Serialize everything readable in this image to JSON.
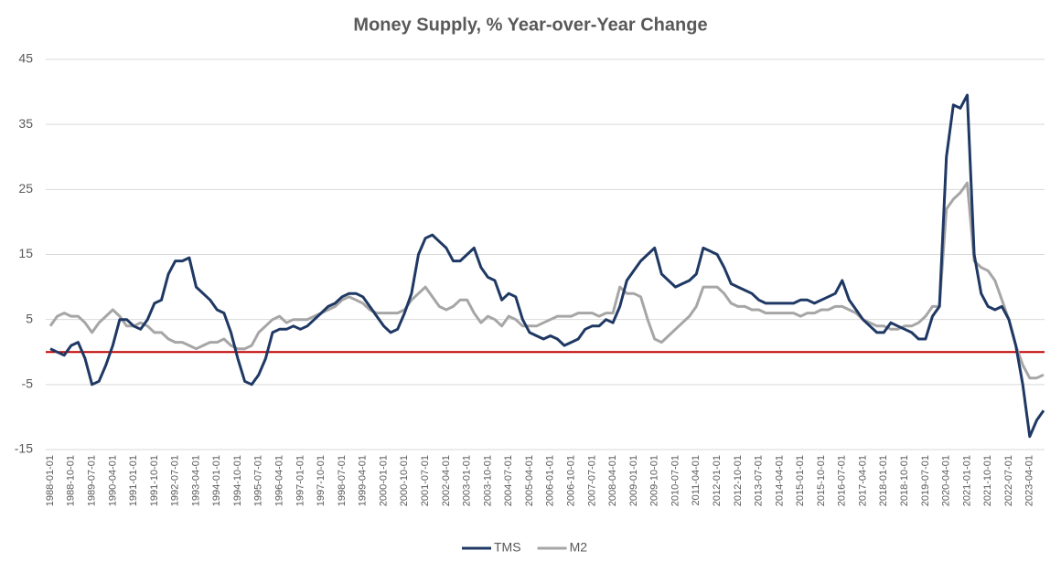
{
  "chart_data": {
    "type": "line",
    "title": "Money Supply, % Year-over-Year Change",
    "categories": [
      "1988-01-01",
      null,
      null,
      "1988-10-01",
      null,
      null,
      "1989-07-01",
      null,
      null,
      "1990-04-01",
      null,
      null,
      "1991-01-01",
      null,
      null,
      "1991-10-01",
      null,
      null,
      "1992-07-01",
      null,
      null,
      "1993-04-01",
      null,
      null,
      "1994-01-01",
      null,
      null,
      "1994-10-01",
      null,
      null,
      "1995-07-01",
      null,
      null,
      "1996-04-01",
      null,
      null,
      "1997-01-01",
      null,
      null,
      "1997-10-01",
      null,
      null,
      "1998-07-01",
      null,
      null,
      "1999-04-01",
      null,
      null,
      "2000-01-01",
      null,
      null,
      "2000-10-01",
      null,
      null,
      "2001-07-01",
      null,
      null,
      "2002-04-01",
      null,
      null,
      "2003-01-01",
      null,
      null,
      "2003-10-01",
      null,
      null,
      "2004-07-01",
      null,
      null,
      "2005-04-01",
      null,
      null,
      "2006-01-01",
      null,
      null,
      "2006-10-01",
      null,
      null,
      "2007-07-01",
      null,
      null,
      "2008-04-01",
      null,
      null,
      "2009-01-01",
      null,
      null,
      "2009-10-01",
      null,
      null,
      "2010-07-01",
      null,
      null,
      "2011-04-01",
      null,
      null,
      "2012-01-01",
      null,
      null,
      "2012-10-01",
      null,
      null,
      "2013-07-01",
      null,
      null,
      "2014-04-01",
      null,
      null,
      "2015-01-01",
      null,
      null,
      "2015-10-01",
      null,
      null,
      "2016-07-01",
      null,
      null,
      "2017-04-01",
      null,
      null,
      "2018-01-01",
      null,
      null,
      "2018-10-01",
      null,
      null,
      "2019-07-01",
      null,
      null,
      "2020-04-01",
      null,
      null,
      "2021-01-01",
      null,
      null,
      "2021-10-01",
      null,
      null,
      "2022-07-01",
      null,
      null,
      "2023-04-01",
      null,
      null
    ],
    "series": [
      {
        "name": "TMS",
        "color": "#1f3864",
        "values": [
          0.5,
          0,
          -0.5,
          1,
          1.5,
          -1,
          -5,
          -4.5,
          -2,
          1,
          5,
          5,
          4,
          3.5,
          5,
          7.5,
          8,
          12,
          14,
          14,
          14.5,
          10,
          9,
          8,
          6.5,
          6,
          3,
          -1,
          -4.5,
          -5,
          -3.5,
          -1,
          3,
          3.5,
          3.5,
          4,
          3.5,
          4,
          5,
          6,
          7,
          7.5,
          8.5,
          9,
          9,
          8.5,
          7,
          5.5,
          4,
          3,
          3.5,
          6,
          9,
          15,
          17.5,
          18,
          17,
          16,
          14,
          14,
          15,
          16,
          13,
          11.5,
          11,
          8,
          9,
          8.5,
          5,
          3,
          2.5,
          2,
          2.5,
          2,
          1,
          1.5,
          2,
          3.5,
          4,
          4,
          5,
          4.5,
          7,
          11,
          12.5,
          14,
          15,
          16,
          12,
          11,
          10,
          10.5,
          11,
          12,
          16,
          15.5,
          15,
          13,
          10.5,
          10,
          9.5,
          9,
          8,
          7.5,
          7.5,
          7.5,
          7.5,
          7.5,
          8,
          8,
          7.5,
          8,
          8.5,
          9,
          11,
          8,
          6.5,
          5,
          4,
          3,
          3,
          4.5,
          4,
          3.5,
          3,
          2,
          2,
          5.5,
          7,
          30,
          38,
          37.5,
          39.5,
          15,
          9,
          7,
          6.5,
          7,
          5,
          1,
          -5,
          -13,
          -10.5,
          -9
        ]
      },
      {
        "name": "M2",
        "color": "#a6a6a6",
        "values": [
          4,
          5.5,
          6,
          5.5,
          5.5,
          4.5,
          3,
          4.5,
          5.5,
          6.5,
          5.5,
          4,
          4,
          4.5,
          4,
          3,
          3,
          2,
          1.5,
          1.5,
          1,
          0.5,
          1,
          1.5,
          1.5,
          2,
          1,
          0.5,
          0.5,
          1,
          3,
          4,
          5,
          5.5,
          4.5,
          5,
          5,
          5,
          5.5,
          6,
          6.5,
          7,
          8,
          8.5,
          8,
          7.5,
          6.5,
          6,
          6,
          6,
          6,
          6.5,
          8,
          9,
          10,
          8.5,
          7,
          6.5,
          7,
          8,
          8,
          6,
          4.5,
          5.5,
          5,
          4,
          5.5,
          5,
          4,
          4,
          4,
          4.5,
          5,
          5.5,
          5.5,
          5.5,
          6,
          6,
          6,
          5.5,
          6,
          6,
          10,
          9,
          9,
          8.5,
          5,
          2,
          1.5,
          2.5,
          3.5,
          4.5,
          5.5,
          7,
          10,
          10,
          10,
          9,
          7.5,
          7,
          7,
          6.5,
          6.5,
          6,
          6,
          6,
          6,
          6,
          5.5,
          6,
          6,
          6.5,
          6.5,
          7,
          7,
          6.5,
          6,
          5,
          4.5,
          4,
          4,
          3.5,
          3.5,
          4,
          4,
          4.5,
          5.5,
          7,
          7,
          22,
          23.5,
          24.5,
          26,
          14,
          13,
          12.5,
          11,
          8,
          5,
          1,
          -2,
          -4,
          -4,
          -3.5
        ]
      }
    ],
    "ylim": [
      -15,
      45
    ],
    "yticks": [
      -15,
      -5,
      5,
      15,
      25,
      35,
      45
    ],
    "grid": true,
    "reference_line": {
      "value": 0,
      "color": "#c00000"
    },
    "legend": "bottom"
  }
}
